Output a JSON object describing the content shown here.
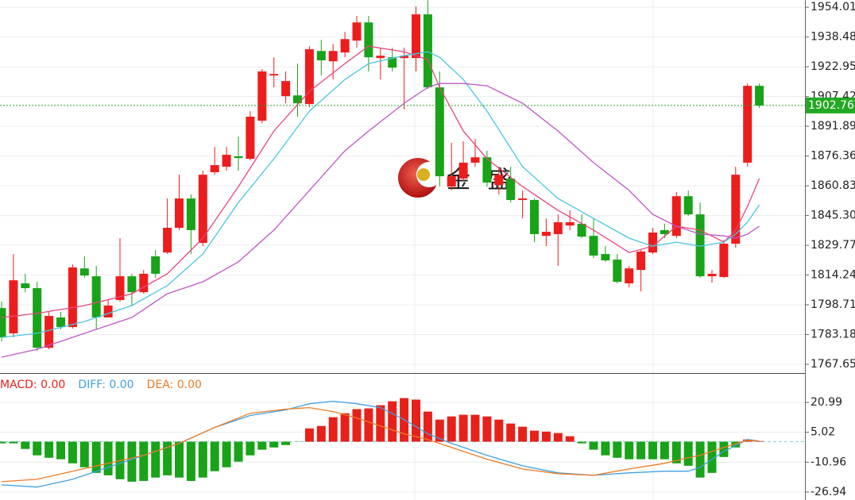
{
  "chart_data": [
    {
      "type": "candlestick",
      "open": [
        1797.0,
        1783.8,
        1809.9,
        1807.4,
        1776.3,
        1792.1,
        1787.1,
        1817.7,
        1813.6,
        1792.1,
        1801.2,
        1813.6,
        1805.3,
        1824.0,
        1826.0,
        1838.9,
        1854.2,
        1831.0,
        1867.9,
        1870.8,
        1876.2,
        1874.9,
        1894.8,
        1918.4,
        1907.6,
        1908.0,
        1903.5,
        1931.2,
        1925.8,
        1930.4,
        1936.6,
        1946.1,
        1927.5,
        1927.9,
        1927.5,
        1927.5,
        1950.3,
        1912.2,
        1860.4,
        1864.6,
        1872.9,
        1875.7,
        1861.2,
        1864.6,
        1853.4,
        1853.4,
        1834.7,
        1835.6,
        1840.1,
        1841.0,
        1834.7,
        1825.2,
        1822.3,
        1809.9,
        1816.9,
        1826.0,
        1837.7,
        1834.7,
        1855.4,
        1845.9,
        1813.6,
        1813.2,
        1830.6,
        1872.9,
        1913.0
      ],
      "high": [
        1800.4,
        1825.2,
        1814.9,
        1810.7,
        1795.4,
        1795.0,
        1819.8,
        1824.0,
        1819.0,
        1801.2,
        1833.5,
        1814.9,
        1816.9,
        1827.3,
        1854.2,
        1866.6,
        1856.3,
        1868.7,
        1881.1,
        1881.1,
        1886.5,
        1899.8,
        1921.7,
        1927.9,
        1920.5,
        1924.6,
        1933.7,
        1937.0,
        1934.9,
        1941.2,
        1949.5,
        1949.5,
        1932.9,
        1932.9,
        1932.9,
        1954.4,
        1957.7,
        1920.5,
        1883.2,
        1884.0,
        1885.3,
        1879.1,
        1870.8,
        1870.8,
        1858.4,
        1854.2,
        1843.8,
        1845.9,
        1848.0,
        1845.9,
        1843.8,
        1829.3,
        1825.2,
        1819.0,
        1827.3,
        1838.9,
        1841.0,
        1857.5,
        1858.4,
        1852.1,
        1816.9,
        1832.7,
        1870.8,
        1914.2,
        1914.2
      ],
      "low": [
        1779.6,
        1781.7,
        1805.3,
        1774.7,
        1775.5,
        1785.9,
        1786.3,
        1812.8,
        1785.9,
        1792.1,
        1800.4,
        1798.3,
        1804.5,
        1812.8,
        1825.2,
        1837.7,
        1825.2,
        1829.3,
        1866.6,
        1868.7,
        1868.7,
        1874.1,
        1893.5,
        1912.2,
        1903.9,
        1896.9,
        1901.8,
        1918.4,
        1916.3,
        1927.9,
        1932.9,
        1920.5,
        1916.3,
        1920.5,
        1900.6,
        1920.5,
        1911.4,
        1860.4,
        1858.4,
        1863.3,
        1870.8,
        1860.4,
        1856.3,
        1852.1,
        1843.8,
        1831.4,
        1829.3,
        1819.0,
        1837.7,
        1833.5,
        1823.1,
        1821.1,
        1809.9,
        1807.8,
        1805.7,
        1825.2,
        1833.5,
        1833.5,
        1845.1,
        1812.8,
        1810.3,
        1812.8,
        1828.5,
        1870.8,
        1901.4
      ],
      "close": [
        1781.7,
        1811.5,
        1807.4,
        1776.3,
        1792.9,
        1787.1,
        1818.2,
        1814.0,
        1792.1,
        1798.3,
        1813.6,
        1805.3,
        1814.9,
        1814.9,
        1838.9,
        1854.2,
        1837.7,
        1866.6,
        1871.6,
        1877.0,
        1875.3,
        1896.9,
        1920.5,
        1919.2,
        1915.5,
        1903.9,
        1932.1,
        1926.3,
        1931.2,
        1937.4,
        1946.1,
        1927.9,
        1928.7,
        1922.5,
        1928.7,
        1950.3,
        1912.2,
        1865.8,
        1865.8,
        1872.9,
        1875.7,
        1862.5,
        1866.6,
        1853.4,
        1854.2,
        1835.6,
        1836.8,
        1841.8,
        1841.8,
        1834.3,
        1824.4,
        1821.9,
        1810.7,
        1817.7,
        1826.5,
        1836.4,
        1835.6,
        1855.4,
        1845.9,
        1813.6,
        1814.9,
        1830.6,
        1866.6,
        1913.0,
        1902.76
      ],
      "up_color": "#ee1d1d",
      "down_color": "#18a318",
      "lines": [
        {
          "color": "#e8457c",
          "x": [
            0,
            3,
            7,
            11,
            14,
            17,
            20,
            23,
            26,
            29,
            31,
            34,
            36,
            37,
            39,
            41,
            44,
            47,
            50,
            53,
            55,
            57,
            59,
            61,
            62,
            63,
            64
          ],
          "values": [
            1792.1,
            1794.2,
            1798.3,
            1804.5,
            1814.9,
            1833.5,
            1860.4,
            1889.4,
            1910.1,
            1924.6,
            1933.7,
            1930.8,
            1926.7,
            1912.2,
            1889.4,
            1874.9,
            1860.4,
            1848.0,
            1837.7,
            1826.0,
            1829.3,
            1839.7,
            1837.7,
            1831.4,
            1837.7,
            1850.1,
            1864.6
          ]
        },
        {
          "color": "#48c6e0",
          "x": [
            0,
            3,
            7,
            11,
            14,
            17,
            20,
            23,
            26,
            29,
            31,
            34,
            36,
            37,
            39,
            41,
            44,
            47,
            50,
            53,
            55,
            57,
            59,
            61,
            62,
            63,
            64
          ],
          "values": [
            1781.7,
            1783.8,
            1790.0,
            1798.3,
            1808.7,
            1825.2,
            1852.1,
            1874.9,
            1899.8,
            1916.3,
            1924.6,
            1928.7,
            1930.8,
            1927.9,
            1916.3,
            1899.8,
            1870.8,
            1854.2,
            1843.8,
            1833.5,
            1829.3,
            1831.4,
            1829.3,
            1831.4,
            1835.6,
            1841.8,
            1850.9
          ]
        },
        {
          "color": "#c055c8",
          "x": [
            0,
            3,
            7,
            11,
            14,
            17,
            20,
            23,
            26,
            29,
            31,
            34,
            36,
            37,
            39,
            41,
            44,
            47,
            50,
            53,
            55,
            57,
            59,
            61,
            62,
            63,
            64
          ],
          "values": [
            1771.4,
            1775.5,
            1783.8,
            1792.1,
            1804.5,
            1810.7,
            1821.1,
            1837.7,
            1858.4,
            1879.1,
            1889.4,
            1903.9,
            1912.2,
            1914.2,
            1914.2,
            1913.0,
            1903.9,
            1889.4,
            1872.9,
            1858.4,
            1845.9,
            1839.7,
            1835.6,
            1834.7,
            1833.5,
            1835.6,
            1839.7
          ]
        }
      ],
      "ylim": [
        1763.1,
        1957.8
      ],
      "yticks": [
        1954.01,
        1938.48,
        1922.95,
        1907.42,
        1891.89,
        1876.36,
        1860.83,
        {
          "value": 1845.3,
          "label": "1845.30"
        },
        1829.77,
        1814.24,
        1798.71,
        1783.18,
        1767.65
      ],
      "grid": true,
      "last_price": 1902.76,
      "last_price_color": "#23a823",
      "watermark": "金 盛"
    },
    {
      "type": "macd",
      "series": [
        {
          "name": "MACD: 0.00",
          "color": "#e8201a",
          "down_color": "#18a318",
          "values": [
            -0.9,
            -0.9,
            -3.9,
            -7.3,
            -8.6,
            -9.4,
            -11.6,
            -13.7,
            -16.7,
            -18.0,
            -20.1,
            -21.4,
            -21.0,
            -19.2,
            -18.0,
            -19.2,
            -21.0,
            -19.2,
            -15.8,
            -13.7,
            -10.7,
            -7.3,
            -4.3,
            -3.1,
            -1.8,
            -0.1,
            7.1,
            8.4,
            13.1,
            15.2,
            17.4,
            17.8,
            19.5,
            21.6,
            23.3,
            22.5,
            16.1,
            11.8,
            13.5,
            14.4,
            14.4,
            13.5,
            11.8,
            9.7,
            8.0,
            5.9,
            5.4,
            4.6,
            2.9,
            -0.9,
            -4.3,
            -7.3,
            -8.6,
            -9.4,
            -9.4,
            -9.4,
            -9.4,
            -11.6,
            -12.9,
            -19.2,
            -16.7,
            -8.2,
            -3.1,
            1.2,
            0.3
          ]
        },
        {
          "name": "DIFF: 0.00",
          "color": "#3f9fe6",
          "x": [
            0,
            3,
            6,
            9,
            12,
            15,
            18,
            21,
            24,
            26,
            28,
            30,
            32,
            34,
            36,
            38,
            41,
            44,
            47,
            50,
            53,
            56,
            58,
            59,
            61,
            63,
            64
          ],
          "values": [
            -23.1,
            -24.3,
            -20.1,
            -13.7,
            -7.3,
            -0.9,
            7.6,
            14.0,
            17.0,
            20.3,
            21.6,
            20.3,
            18.2,
            11.8,
            4.2,
            -0.9,
            -7.3,
            -12.9,
            -16.7,
            -18.0,
            -16.7,
            -15.8,
            -15.8,
            -13.7,
            -5.2,
            1.2,
            0.3
          ]
        },
        {
          "name": "DEA: 0.00",
          "color": "#f07a22",
          "x": [
            0,
            3,
            6,
            9,
            12,
            15,
            18,
            21,
            24,
            26,
            28,
            30,
            32,
            34,
            36,
            38,
            41,
            44,
            47,
            50,
            53,
            56,
            58,
            59,
            61,
            63,
            64
          ],
          "values": [
            -21.4,
            -20.1,
            -15.8,
            -11.6,
            -7.3,
            -0.9,
            7.6,
            15.2,
            17.4,
            18.2,
            16.1,
            12.7,
            8.4,
            4.2,
            1.2,
            -3.1,
            -9.4,
            -14.6,
            -17.1,
            -18.0,
            -14.6,
            -11.6,
            -8.6,
            -7.3,
            -3.1,
            0.8,
            0.3
          ]
        }
      ],
      "ylim": [
        -31.2,
        36.3
      ],
      "yticks": [
        20.99,
        5.02,
        -10.96,
        -26.94
      ],
      "grid": true
    }
  ]
}
